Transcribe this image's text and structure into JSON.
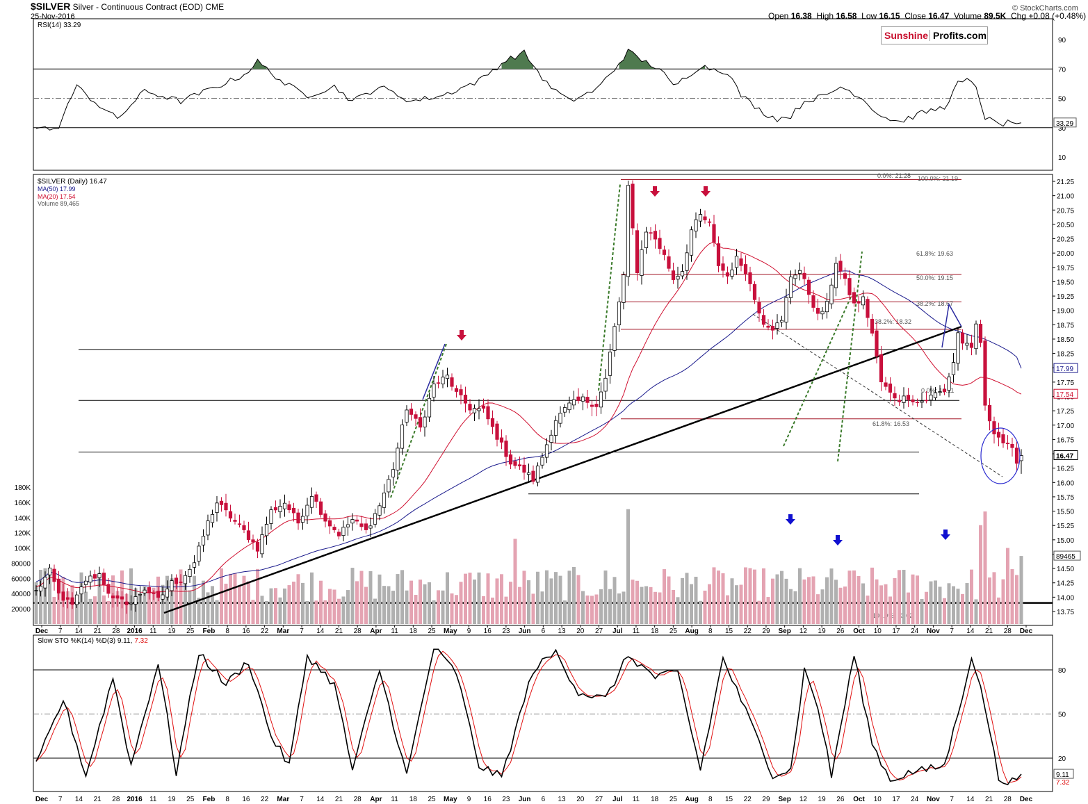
{
  "header": {
    "symbol": "$SILVER",
    "name": "Silver - Continuous Contract (EOD)",
    "exchange": "CME",
    "date": "25-Nov-2016",
    "open_label": "Open",
    "open": "16.38",
    "high_label": "High",
    "high": "16.58",
    "low_label": "Low",
    "low": "16.15",
    "close_label": "Close",
    "close": "16.47",
    "volume_label": "Volume",
    "volume": "89.5K",
    "chg_label": "Chg",
    "chg": "+0.08 (+0.48%)",
    "chg_arrow": "up-arrow-icon",
    "watermark": "© StockCharts.com"
  },
  "logo": {
    "part1": "Sunshine",
    "part2": "Profits.com"
  },
  "colors": {
    "up": "#ffffff",
    "down": "#c8103c",
    "ma50": "#1a1a8c",
    "ma20": "#d01030",
    "volume_up": "#b0b0b0",
    "volume_down": "#e4a3b2",
    "rsi_fill": "#4f7a4f",
    "annotation_red": "#c8103c",
    "annotation_blue": "#1010d0",
    "fib": "#a01020",
    "sto_k": "#000000",
    "sto_d": "#e01010"
  },
  "rsi": {
    "label": "RSI(14) 33.29",
    "levels": [
      "90",
      "70",
      "50",
      "30",
      "10"
    ],
    "current": "33.29"
  },
  "price": {
    "legend_main": "$SILVER (Daily) 16.47",
    "legend_ma50": "MA(50) 17.99",
    "legend_ma20": "MA(20) 17.54",
    "legend_vol": "Volume 89,465",
    "ticks": [
      "21.25",
      "21.00",
      "20.75",
      "20.50",
      "20.25",
      "20.00",
      "19.75",
      "19.50",
      "19.25",
      "19.00",
      "18.75",
      "18.50",
      "18.25",
      "18.00",
      "17.75",
      "17.50",
      "17.25",
      "17.00",
      "16.75",
      "16.50",
      "16.25",
      "16.00",
      "15.75",
      "15.50",
      "15.25",
      "15.00",
      "14.75",
      "14.50",
      "14.25",
      "14.00",
      "13.75"
    ],
    "badge_ma50": "17.99",
    "badge_ma20": "17.54",
    "badge_close": "16.47",
    "volume_ticks": [
      "180K",
      "160K",
      "140K",
      "120K",
      "100K",
      "80000",
      "60000",
      "40000",
      "20000"
    ],
    "badge_volume": "89465",
    "fib_labels": [
      "0.0%: 21.28",
      "100.0%: 21.19",
      "61.8%: 19.63",
      "50.0%: 19.15",
      "38.2%: 18.67",
      "38.2%: 18.32",
      "0.0%: 17.11",
      "61.8%: 16.53",
      "100.0%: 13.62"
    ]
  },
  "sto": {
    "label_main": "Slow STO %K(14) %D(3) 9.11,",
    "label_d": "7.32",
    "levels": [
      "80",
      "50",
      "20"
    ],
    "badge_k": "9.11",
    "badge_d": "7.32"
  },
  "xaxis": {
    "labels": [
      "Dec",
      "7",
      "14",
      "21",
      "28",
      "2016",
      "11",
      "19",
      "25",
      "Feb",
      "8",
      "16",
      "22",
      "Mar",
      "7",
      "14",
      "21",
      "28",
      "Apr",
      "11",
      "18",
      "25",
      "May",
      "9",
      "16",
      "23",
      "Jun",
      "6",
      "13",
      "20",
      "27",
      "Jul",
      "11",
      "18",
      "25",
      "Aug",
      "8",
      "15",
      "22",
      "29",
      "Sep",
      "12",
      "19",
      "26",
      "Oct",
      "10",
      "17",
      "24",
      "Nov",
      "7",
      "14",
      "21",
      "28",
      "Dec"
    ],
    "bold": [
      "Dec",
      "2016",
      "Feb",
      "Mar",
      "Apr",
      "May",
      "Jun",
      "Jul",
      "Aug",
      "Sep",
      "Oct",
      "Nov"
    ]
  },
  "chart_data": {
    "type": "candlestick",
    "title": "$SILVER Silver - Continuous Contract (EOD) CME",
    "period": "Daily",
    "range": "early Dec 2015 – 25-Nov-2016",
    "last_bar": {
      "date": "25-Nov-2016",
      "open": 16.38,
      "high": 16.58,
      "low": 16.15,
      "close": 16.47,
      "volume": 89465,
      "change": 0.08,
      "change_pct": 0.48
    },
    "price_axis": [
      13.75,
      21.25
    ],
    "volume_axis": [
      0,
      180000
    ],
    "indicators": {
      "MA50": 17.99,
      "MA20": 17.54,
      "RSI14": 33.29,
      "SlowSTO_K": 9.11,
      "SlowSTO_D": 7.32
    },
    "horizontal_levels": [
      18.32,
      17.43,
      16.53,
      15.8,
      13.9
    ],
    "fibonacci": [
      {
        "label": "0.0%",
        "value": 21.28
      },
      {
        "label": "100.0%",
        "value": 21.19
      },
      {
        "label": "61.8%",
        "value": 19.63
      },
      {
        "label": "50.0%",
        "value": 19.15
      },
      {
        "label": "38.2%",
        "value": 18.67
      },
      {
        "label": "38.2%",
        "value": 18.32
      },
      {
        "label": "0.0%",
        "value": 17.11
      },
      {
        "label": "61.8%",
        "value": 16.53
      },
      {
        "label": "100.0%",
        "value": 13.62
      }
    ],
    "close_path": [
      {
        "t": 0,
        "c": 14.1
      },
      {
        "t": 3,
        "c": 14.45
      },
      {
        "t": 5,
        "c": 14.05
      },
      {
        "t": 8,
        "c": 13.85
      },
      {
        "t": 11,
        "c": 14.3
      },
      {
        "t": 14,
        "c": 14.4
      },
      {
        "t": 17,
        "c": 13.95
      },
      {
        "t": 21,
        "c": 13.9
      },
      {
        "t": 24,
        "c": 14.15
      },
      {
        "t": 27,
        "c": 13.95
      },
      {
        "t": 30,
        "c": 14.25
      },
      {
        "t": 32,
        "c": 14.3
      },
      {
        "t": 35,
        "c": 14.6
      },
      {
        "t": 38,
        "c": 15.3
      },
      {
        "t": 40,
        "c": 15.65
      },
      {
        "t": 43,
        "c": 15.4
      },
      {
        "t": 46,
        "c": 15.15
      },
      {
        "t": 49,
        "c": 14.85
      },
      {
        "t": 52,
        "c": 15.5
      },
      {
        "t": 55,
        "c": 15.65
      },
      {
        "t": 58,
        "c": 15.3
      },
      {
        "t": 61,
        "c": 15.8
      },
      {
        "t": 64,
        "c": 15.35
      },
      {
        "t": 67,
        "c": 15.1
      },
      {
        "t": 70,
        "c": 15.35
      },
      {
        "t": 73,
        "c": 15.15
      },
      {
        "t": 76,
        "c": 15.6
      },
      {
        "t": 79,
        "c": 16.25
      },
      {
        "t": 82,
        "c": 17.3
      },
      {
        "t": 85,
        "c": 16.95
      },
      {
        "t": 88,
        "c": 17.7
      },
      {
        "t": 91,
        "c": 17.85
      },
      {
        "t": 93,
        "c": 17.55
      },
      {
        "t": 96,
        "c": 17.3
      },
      {
        "t": 99,
        "c": 17.25
      },
      {
        "t": 102,
        "c": 16.8
      },
      {
        "t": 105,
        "c": 16.35
      },
      {
        "t": 108,
        "c": 16.2
      },
      {
        "t": 110,
        "c": 16.05
      },
      {
        "t": 112,
        "c": 16.45
      },
      {
        "t": 115,
        "c": 17.1
      },
      {
        "t": 118,
        "c": 17.35
      },
      {
        "t": 121,
        "c": 17.45
      },
      {
        "t": 124,
        "c": 17.35
      },
      {
        "t": 126,
        "c": 17.8
      },
      {
        "t": 128,
        "c": 18.7
      },
      {
        "t": 130,
        "c": 19.6
      },
      {
        "t": 131,
        "c": 21.13
      },
      {
        "t": 133,
        "c": 19.7
      },
      {
        "t": 135,
        "c": 20.4
      },
      {
        "t": 137,
        "c": 20.25
      },
      {
        "t": 139,
        "c": 19.95
      },
      {
        "t": 141,
        "c": 19.55
      },
      {
        "t": 143,
        "c": 19.7
      },
      {
        "t": 145,
        "c": 20.4
      },
      {
        "t": 147,
        "c": 20.65
      },
      {
        "t": 149,
        "c": 20.5
      },
      {
        "t": 151,
        "c": 19.8
      },
      {
        "t": 153,
        "c": 19.6
      },
      {
        "t": 155,
        "c": 19.9
      },
      {
        "t": 157,
        "c": 19.7
      },
      {
        "t": 159,
        "c": 19.2
      },
      {
        "t": 161,
        "c": 18.8
      },
      {
        "t": 163,
        "c": 18.7
      },
      {
        "t": 165,
        "c": 18.8
      },
      {
        "t": 167,
        "c": 19.6
      },
      {
        "t": 169,
        "c": 19.7
      },
      {
        "t": 171,
        "c": 19.3
      },
      {
        "t": 173,
        "c": 18.9
      },
      {
        "t": 175,
        "c": 19.1
      },
      {
        "t": 177,
        "c": 19.85
      },
      {
        "t": 179,
        "c": 19.5
      },
      {
        "t": 181,
        "c": 19.1
      },
      {
        "t": 183,
        "c": 19.2
      },
      {
        "t": 185,
        "c": 18.6
      },
      {
        "t": 187,
        "c": 17.75
      },
      {
        "t": 189,
        "c": 17.55
      },
      {
        "t": 191,
        "c": 17.45
      },
      {
        "t": 193,
        "c": 17.5
      },
      {
        "t": 195,
        "c": 17.4
      },
      {
        "t": 197,
        "c": 17.45
      },
      {
        "t": 199,
        "c": 17.55
      },
      {
        "t": 201,
        "c": 17.6
      },
      {
        "t": 203,
        "c": 18.1
      },
      {
        "t": 204,
        "c": 18.6
      },
      {
        "t": 205,
        "c": 18.45
      },
      {
        "t": 207,
        "c": 18.3
      },
      {
        "t": 208,
        "c": 18.75
      },
      {
        "t": 209,
        "c": 18.45
      },
      {
        "t": 210,
        "c": 17.3
      },
      {
        "t": 212,
        "c": 16.9
      },
      {
        "t": 214,
        "c": 16.7
      },
      {
        "t": 216,
        "c": 16.55
      },
      {
        "t": 217,
        "c": 16.39
      },
      {
        "t": 218,
        "c": 16.47
      }
    ],
    "volume_peaks": [
      {
        "label": "Jun 30",
        "value": 151000
      },
      {
        "label": "Nov 11",
        "value": 148000
      },
      {
        "label": "Nov 10",
        "value": 130000
      },
      {
        "label": "Apr 21",
        "value": 112000
      }
    ]
  }
}
